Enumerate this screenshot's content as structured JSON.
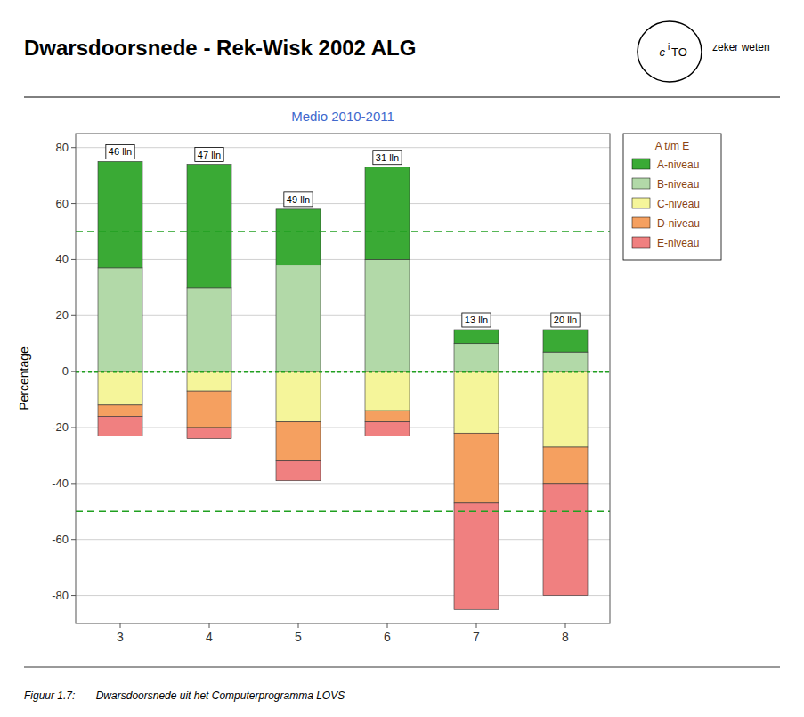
{
  "chart_data": {
    "type": "bar",
    "stacked": true,
    "title": "Dwarsdoorsnede - Rek-Wisk 2002 ALG",
    "subtitle": "Medio 2010-2011",
    "subtitle_color": "#4169cd",
    "ylabel": "Percentage",
    "caption": "Figuur 1.7:       Dwarsdoorsnede uit het Computerprogramma LOVS",
    "logo": {
      "texts": [
        "c",
        "i",
        "TO"
      ],
      "tagline": "zeker weten"
    },
    "categories": [
      "3",
      "4",
      "5",
      "6",
      "7",
      "8"
    ],
    "series": [
      {
        "name": "A-niveau",
        "color": "#3aaa35",
        "values": [
          38,
          44,
          20,
          33,
          5,
          8
        ]
      },
      {
        "name": "B-niveau",
        "color": "#b2d9a8",
        "values": [
          37,
          30,
          38,
          40,
          10,
          7
        ]
      },
      {
        "name": "C-niveau",
        "color": "#f5f59a",
        "values": [
          -12,
          -7,
          -18,
          -14,
          -22,
          -27
        ]
      },
      {
        "name": "D-niveau",
        "color": "#f5a060",
        "values": [
          -4,
          -13,
          -14,
          -4,
          -25,
          -13
        ]
      },
      {
        "name": "E-niveau",
        "color": "#f08080",
        "values": [
          -7,
          -4,
          -7,
          -5,
          -38,
          -40
        ]
      }
    ],
    "annotations": [
      {
        "text": "46 lln",
        "category": "3"
      },
      {
        "text": "47 lln",
        "category": "4"
      },
      {
        "text": "49 lln",
        "category": "5"
      },
      {
        "text": "31 lln",
        "category": "6"
      },
      {
        "text": "13 lln",
        "category": "7"
      },
      {
        "text": "20 lln",
        "category": "8"
      }
    ],
    "reference_lines": [
      {
        "value": 50,
        "line_style": "dashed",
        "color": "#20a020"
      },
      {
        "value": -50,
        "line_style": "dashed",
        "color": "#20a020"
      },
      {
        "value": 0,
        "line_style": "dotted",
        "color": "#20a020"
      }
    ],
    "ylim": [
      -90,
      85
    ],
    "yticks": [
      -80,
      -60,
      -40,
      -20,
      0,
      20,
      40,
      60,
      80
    ],
    "grid": true,
    "legend": "right",
    "legend_title": "A t/m E",
    "legend_color": "#8b4513"
  }
}
